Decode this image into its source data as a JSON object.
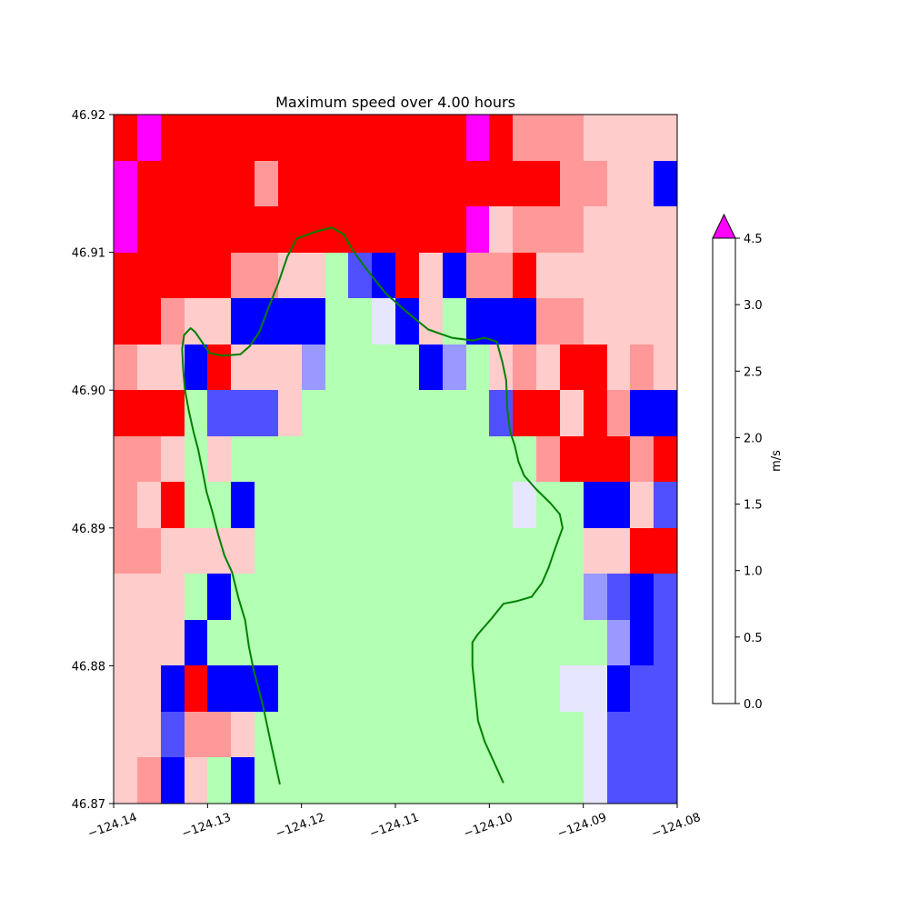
{
  "chart_data": {
    "type": "heatmap",
    "title": "Maximum speed over 4.00 hours",
    "xlim": [
      -124.14,
      -124.08
    ],
    "ylim": [
      46.87,
      46.92
    ],
    "xticks": [
      -124.14,
      -124.13,
      -124.12,
      -124.11,
      -124.1,
      -124.09,
      -124.08
    ],
    "xtick_labels": [
      "−124.14",
      "−124.13",
      "−124.12",
      "−124.11",
      "−124.10",
      "−124.09",
      "−124.08"
    ],
    "yticks": [
      46.87,
      46.88,
      46.89,
      46.9,
      46.91,
      46.92
    ],
    "ytick_labels": [
      "46.87",
      "46.88",
      "46.89",
      "46.90",
      "46.91",
      "46.92"
    ],
    "cols": 24,
    "rows": 15,
    "land_color": "#b3ffb3",
    "coastline_color": "#008000",
    "legend": "colorbar, right",
    "colorbar": {
      "label": "m/s",
      "boundaries": [
        0.0,
        0.5,
        1.0,
        1.5,
        2.0,
        2.5,
        3.0,
        4.5
      ],
      "tick_values": [
        0.0,
        0.5,
        1.0,
        1.5,
        2.0,
        2.5,
        3.0,
        4.5
      ],
      "tick_labels": [
        "0.0",
        "0.5",
        "1.0",
        "1.5",
        "2.0",
        "2.5",
        "3.0",
        "4.5"
      ],
      "colors": [
        "#e6e6ff",
        "#9999ff",
        "#5050ff",
        "#0000ff",
        "#ffcccc",
        "#ff9999",
        "#ff0000"
      ],
      "extend_max_color": "#ff00ff"
    },
    "class_codes": {
      "L": "land",
      "0": "0.0–0.5",
      "1": "0.5–1.0",
      "2": "1.0–1.5",
      "3": "1.5–2.0",
      "4": "2.0–2.5",
      "5": "2.5–3.0",
      "6": "3.0–4.5",
      "7": "> 4.5"
    },
    "grid": [
      "676666666666666765554444",
      "766666566666666666655443",
      "766666666666666745554444",
      "666665544L23643556444444",
      "665443333LL034L333554444",
      "544364441LLLL31L45466454",
      "666L2224LLLLLLLL26646533",
      "554L4LLLLLLLLLLLLL566656",
      "546LL3LLLLLLLLLLL0LL3342",
      "554444LLLLLLLLLLLLLL4466",
      "444L3LLLLLLLLLLLLLLL1232",
      "4443LLLLLLLLLLLLLLLLL132",
      "4436333LLLLLLLLLLLL00322",
      "442554LLLLLLLLLLLLLL0222",
      "4534L3LLLLLLLLLLLLLL0222"
    ],
    "coastline_west": [
      [
        -124.1223,
        46.8714
      ],
      [
        -124.1232,
        46.8742
      ],
      [
        -124.1241,
        46.8771
      ],
      [
        -124.1251,
        46.8797
      ],
      [
        -124.1256,
        46.8814
      ],
      [
        -124.126,
        46.8833
      ],
      [
        -124.1267,
        46.8849
      ],
      [
        -124.1274,
        46.8868
      ],
      [
        -124.1282,
        46.888
      ],
      [
        -124.1289,
        46.8896
      ],
      [
        -124.1295,
        46.8912
      ],
      [
        -124.1301,
        46.8926
      ],
      [
        -124.1305,
        46.894
      ],
      [
        -124.131,
        46.8957
      ],
      [
        -124.1315,
        46.897
      ],
      [
        -124.132,
        46.8985
      ],
      [
        -124.1324,
        46.9
      ],
      [
        -124.1326,
        46.9015
      ],
      [
        -124.1327,
        46.903
      ],
      [
        -124.1325,
        46.904
      ],
      [
        -124.1318,
        46.9045
      ],
      [
        -124.1313,
        46.9042
      ],
      [
        -124.1305,
        46.9034
      ],
      [
        -124.1298,
        46.9027
      ],
      [
        -124.1285,
        46.9025
      ],
      [
        -124.1265,
        46.9026
      ],
      [
        -124.1255,
        46.9032
      ],
      [
        -124.1245,
        46.9042
      ],
      [
        -124.1235,
        46.906
      ],
      [
        -124.1225,
        46.9077
      ],
      [
        -124.1215,
        46.9097
      ],
      [
        -124.1205,
        46.911
      ],
      [
        -124.1185,
        46.9115
      ],
      [
        -124.1168,
        46.9118
      ],
      [
        -124.1155,
        46.9113
      ],
      [
        -124.1145,
        46.9101
      ],
      [
        -124.113,
        46.9087
      ],
      [
        -124.111,
        46.907
      ],
      [
        -124.1085,
        46.9055
      ],
      [
        -124.1065,
        46.9044
      ],
      [
        -124.104,
        46.9038
      ],
      [
        -124.1018,
        46.9036
      ],
      [
        -124.1005,
        46.9038
      ],
      [
        -124.0992,
        46.9035
      ],
      [
        -124.0986,
        46.902
      ],
      [
        -124.0982,
        46.9007
      ],
      [
        -124.0981,
        46.8987
      ],
      [
        -124.0978,
        46.897
      ],
      [
        -124.0973,
        46.896
      ],
      [
        -124.0969,
        46.8948
      ],
      [
        -124.0963,
        46.8938
      ],
      [
        -124.095,
        46.8928
      ],
      [
        -124.0935,
        46.8918
      ],
      [
        -124.0925,
        46.891
      ],
      [
        -124.0922,
        46.89
      ],
      [
        -124.093,
        46.8885
      ],
      [
        -124.0937,
        46.8871
      ],
      [
        -124.0944,
        46.886
      ],
      [
        -124.0955,
        46.885
      ],
      [
        -124.097,
        46.8847
      ],
      [
        -124.0985,
        46.8845
      ],
      [
        -124.0998,
        46.8834
      ],
      [
        -124.1012,
        46.8823
      ],
      [
        -124.1018,
        46.8817
      ],
      [
        -124.1018,
        46.88
      ],
      [
        -124.1015,
        46.878
      ],
      [
        -124.1012,
        46.876
      ],
      [
        -124.1005,
        46.8745
      ],
      [
        -124.0995,
        46.873
      ],
      [
        -124.0985,
        46.8715
      ]
    ]
  }
}
